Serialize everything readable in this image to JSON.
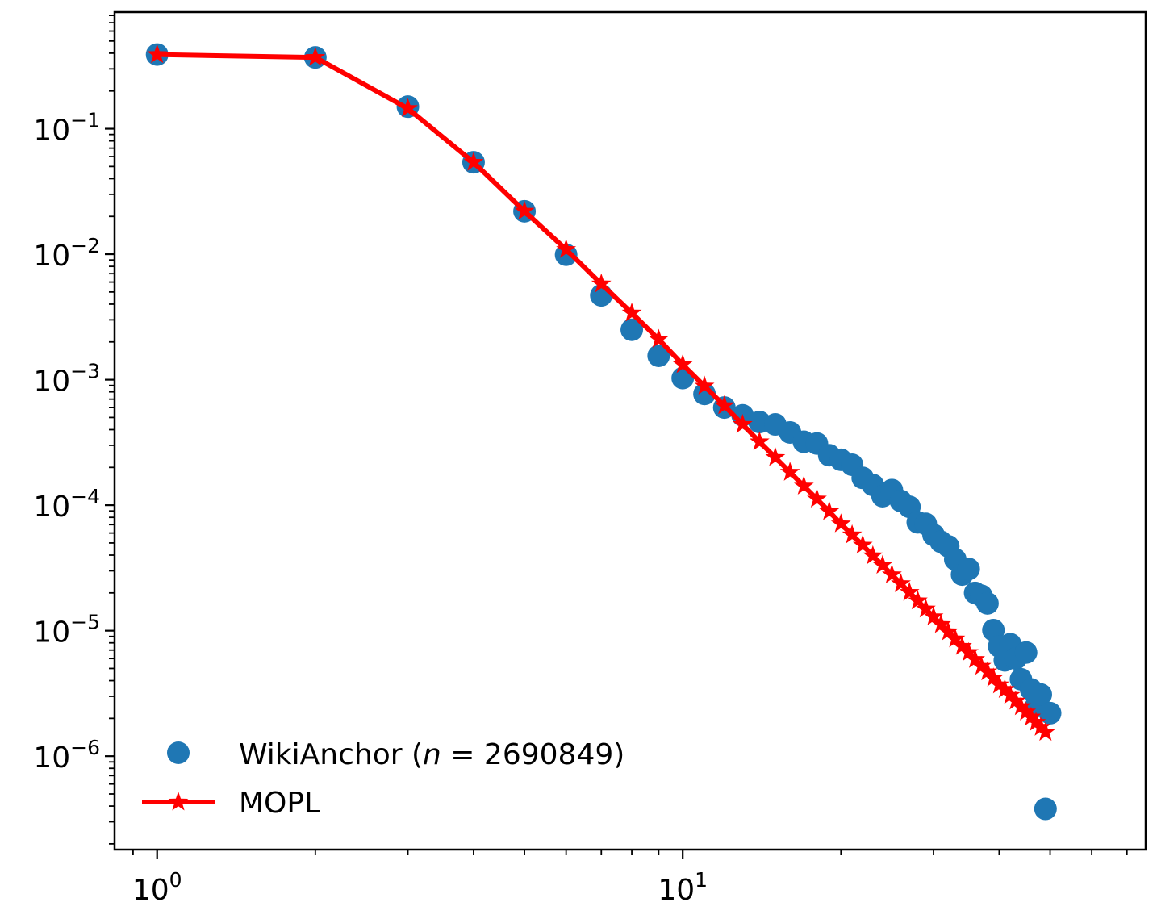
{
  "chart_data": {
    "type": "scatter",
    "title": "",
    "xlabel": "",
    "ylabel": "",
    "xscale": "log",
    "yscale": "log",
    "xlim": [
      0.83,
      76
    ],
    "ylim": [
      1.8e-07,
      0.85
    ],
    "grid": false,
    "legend_position": "lower-left",
    "x_ticks": [
      {
        "base": "10",
        "exp": "0",
        "value": 1
      },
      {
        "base": "10",
        "exp": "1",
        "value": 10
      }
    ],
    "y_ticks": [
      {
        "base": "10",
        "exp": "−1",
        "value": 0.1
      },
      {
        "base": "10",
        "exp": "−2",
        "value": 0.01
      },
      {
        "base": "10",
        "exp": "−3",
        "value": 0.001
      },
      {
        "base": "10",
        "exp": "−4",
        "value": 0.0001
      },
      {
        "base": "10",
        "exp": "−5",
        "value": 1e-05
      },
      {
        "base": "10",
        "exp": "−6",
        "value": 1e-06
      }
    ],
    "series": [
      {
        "name_prefix": "WikiAnchor (",
        "name_var": "n",
        "name_eq": " = ",
        "name_value": "2690849",
        "name_suffix": ")",
        "style": "markers",
        "marker": "circle",
        "color": "#1f77b4",
        "x": [
          1,
          2,
          3,
          4,
          5,
          6,
          7,
          8,
          9,
          10,
          11,
          12,
          13,
          14,
          15,
          16,
          17,
          18,
          19,
          20,
          21,
          22,
          23,
          24,
          25,
          26,
          27,
          28,
          29,
          30,
          31,
          32,
          33,
          34,
          35,
          36,
          37,
          38,
          39,
          40,
          41,
          42,
          43,
          44,
          45,
          46,
          47,
          48,
          49,
          50
        ],
        "y": [
          0.39,
          0.37,
          0.15,
          0.054,
          0.022,
          0.0099,
          0.0047,
          0.0025,
          0.00155,
          0.00103,
          0.00077,
          0.0006,
          0.00052,
          0.00046,
          0.00044,
          0.00038,
          0.00032,
          0.00031,
          0.00025,
          0.00023,
          0.00021,
          0.000165,
          0.000145,
          0.000118,
          0.000132,
          0.000108,
          9.7e-05,
          7.3e-05,
          7.1e-05,
          5.8e-05,
          5.1e-05,
          4.7e-05,
          3.7e-05,
          2.8e-05,
          3.1e-05,
          2e-05,
          1.9e-05,
          1.65e-05,
          1.01e-05,
          7.5e-06,
          5.8e-06,
          7.8e-06,
          6e-06,
          4.1e-06,
          6.7e-06,
          3.4e-06,
          2.5e-06,
          3.1e-06,
          3.8e-07,
          2.2e-06
        ]
      },
      {
        "name": "MOPL",
        "style": "line-markers",
        "marker": "star",
        "color": "#ff0000",
        "x": [
          1,
          2,
          3,
          4,
          5,
          6,
          7,
          8,
          9,
          10,
          11,
          12,
          13,
          14,
          15,
          16,
          17,
          18,
          19,
          20,
          21,
          22,
          23,
          24,
          25,
          26,
          27,
          28,
          29,
          30,
          31,
          32,
          33,
          34,
          35,
          36,
          37,
          38,
          39,
          40,
          41,
          42,
          43,
          44,
          45,
          46,
          47,
          48,
          49
        ],
        "y": [
          0.39,
          0.37,
          0.145,
          0.054,
          0.022,
          0.0109,
          0.0058,
          0.0034,
          0.0021,
          0.00132,
          0.00089,
          0.00062,
          0.00044,
          0.00032,
          0.00024,
          0.000183,
          0.000142,
          0.000112,
          8.9e-05,
          7.1e-05,
          5.8e-05,
          4.8e-05,
          3.95e-05,
          3.32e-05,
          2.79e-05,
          2.37e-05,
          2.02e-05,
          1.73e-05,
          1.49e-05,
          1.29e-05,
          1.12e-05,
          9.8e-06,
          8.6e-06,
          7.5e-06,
          6.7e-06,
          5.9e-06,
          5.2e-06,
          4.7e-06,
          4.2e-06,
          3.7e-06,
          3.4e-06,
          3.05e-06,
          2.75e-06,
          2.48e-06,
          2.25e-06,
          2.05e-06,
          1.86e-06,
          1.7e-06,
          1.55e-06
        ]
      }
    ]
  }
}
